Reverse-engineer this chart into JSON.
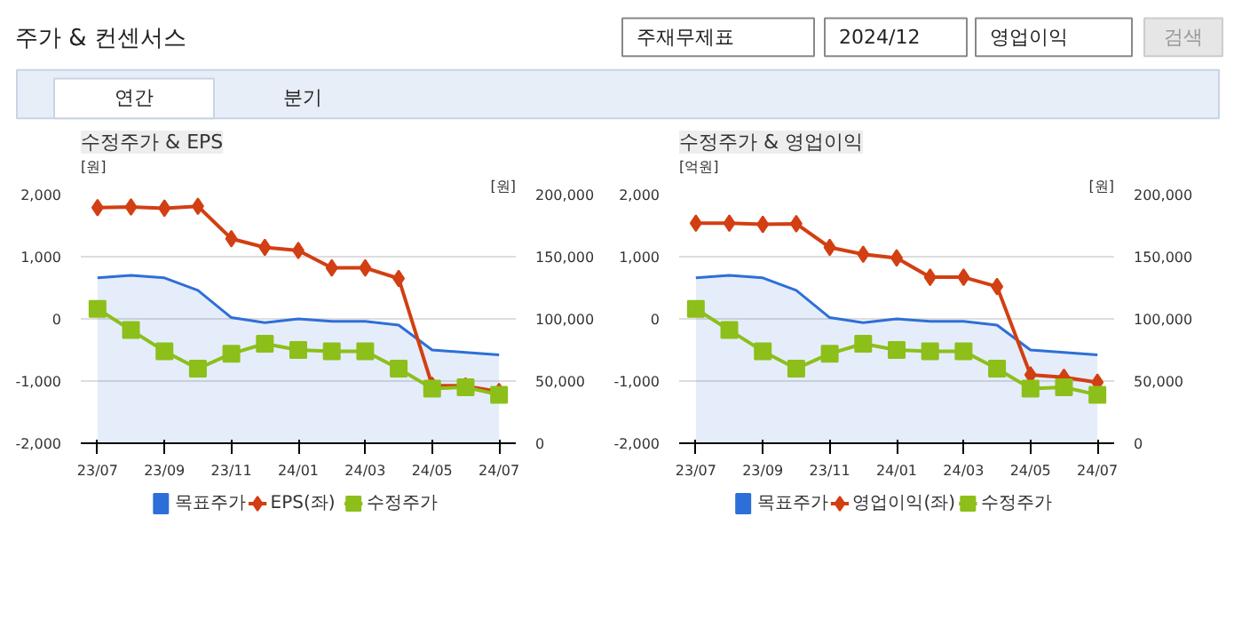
{
  "chart_data": [
    {
      "type": "other",
      "title": "주가 & 컨센서스",
      "annotations": [
        "주재무제표",
        "2024/12",
        "영업이익",
        "검색",
        "연간",
        "분기"
      ]
    },
    {
      "type": "line",
      "title": "수정주가 & EPS",
      "ylabel": "[원]",
      "y2label": "[원]",
      "categories": [
        "23/07",
        null,
        "23/09",
        null,
        "23/11",
        null,
        "24/01",
        null,
        "24/03",
        null,
        "24/05",
        null,
        "24/07"
      ],
      "ylim": [
        -2000,
        2000
      ],
      "yticks": [
        {
          "value": -2000,
          "label": "-2,000"
        },
        {
          "value": -1000,
          "label": "-1,000"
        },
        0,
        {
          "value": 1000,
          "label": "1,000"
        },
        {
          "value": 2000,
          "label": "2,000"
        }
      ],
      "y2lim": [
        0,
        200000
      ],
      "y2ticks": [
        0,
        {
          "value": 50000,
          "label": "50,000"
        },
        {
          "value": 100000,
          "label": "100,000"
        },
        {
          "value": 150000,
          "label": "150,000"
        },
        {
          "value": 200000,
          "label": "200,000"
        }
      ],
      "grid": "y",
      "legend": "bottom",
      "series": [
        {
          "name": "목표주가",
          "type": "area",
          "axis": "y2",
          "color": "#2d6fd8",
          "values": [
            133000,
            135000,
            133000,
            123000,
            101000,
            97000,
            100000,
            98000,
            98000,
            95000,
            75000,
            73000,
            71000
          ]
        },
        {
          "name": "EPS(좌)",
          "type": "line",
          "axis": "y",
          "marker": "diamond",
          "color": "#d23f12",
          "values": [
            1790,
            1800,
            1780,
            1810,
            1290,
            1150,
            1100,
            820,
            820,
            650,
            -1070,
            -1080,
            -1170
          ]
        },
        {
          "name": "수정주가",
          "type": "line",
          "axis": "y2",
          "marker": "square",
          "color": "#8cbf1a",
          "values": [
            108000,
            91000,
            74000,
            60000,
            72000,
            80000,
            75000,
            74000,
            74000,
            60000,
            44000,
            45000,
            39000
          ]
        }
      ]
    },
    {
      "type": "line",
      "title": "수정주가 & 영업이익",
      "ylabel": "[억원]",
      "y2label": "[원]",
      "categories": [
        "23/07",
        null,
        "23/09",
        null,
        "23/11",
        null,
        "24/01",
        null,
        "24/03",
        null,
        "24/05",
        null,
        "24/07"
      ],
      "ylim": [
        -2000,
        2000
      ],
      "yticks": [
        {
          "value": -2000,
          "label": "-2,000"
        },
        {
          "value": -1000,
          "label": "-1,000"
        },
        0,
        {
          "value": 1000,
          "label": "1,000"
        },
        {
          "value": 2000,
          "label": "2,000"
        }
      ],
      "y2lim": [
        0,
        200000
      ],
      "y2ticks": [
        0,
        {
          "value": 50000,
          "label": "50,000"
        },
        {
          "value": 100000,
          "label": "100,000"
        },
        {
          "value": 150000,
          "label": "150,000"
        },
        {
          "value": 200000,
          "label": "200,000"
        }
      ],
      "grid": "y",
      "legend": "bottom",
      "series": [
        {
          "name": "목표주가",
          "type": "area",
          "axis": "y2",
          "color": "#2d6fd8",
          "values": [
            133000,
            135000,
            133000,
            123000,
            101000,
            97000,
            100000,
            98000,
            98000,
            95000,
            75000,
            73000,
            71000
          ]
        },
        {
          "name": "영업이익(좌)",
          "type": "line",
          "axis": "y",
          "marker": "diamond",
          "color": "#d23f12",
          "values": [
            1540,
            1540,
            1520,
            1530,
            1150,
            1040,
            980,
            670,
            670,
            520,
            -900,
            -940,
            -1020
          ]
        },
        {
          "name": "수정주가",
          "type": "line",
          "axis": "y2",
          "marker": "square",
          "color": "#8cbf1a",
          "values": [
            108000,
            91000,
            74000,
            60000,
            72000,
            80000,
            75000,
            74000,
            74000,
            60000,
            44000,
            45000,
            39000
          ]
        }
      ]
    }
  ]
}
